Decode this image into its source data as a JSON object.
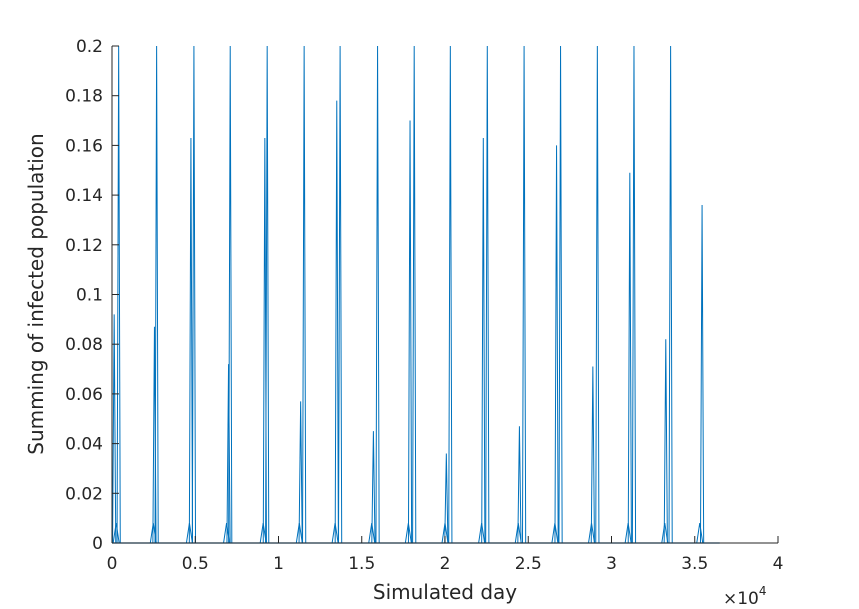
{
  "chart_data": {
    "type": "line",
    "title": "",
    "xlabel": "Simulated day",
    "ylabel": "Summing of infected population",
    "x_exponent_label": "×10",
    "x_exponent_power": "4",
    "xlim": [
      0,
      40000
    ],
    "ylim": [
      0,
      0.2
    ],
    "x_ticks": [
      0,
      5000,
      10000,
      15000,
      20000,
      25000,
      30000,
      35000,
      40000
    ],
    "x_tick_labels": [
      "0",
      "0.5",
      "1",
      "1.5",
      "2",
      "2.5",
      "3",
      "3.5",
      "4"
    ],
    "y_ticks": [
      0,
      0.02,
      0.04,
      0.06,
      0.08,
      0.1,
      0.12,
      0.14,
      0.16,
      0.18,
      0.2
    ],
    "y_tick_labels": [
      "0",
      "0.02",
      "0.04",
      "0.06",
      "0.08",
      "0.1",
      "0.12",
      "0.14",
      "0.16",
      "0.18",
      "0.2"
    ],
    "grid": false,
    "line_color": "#0072BD",
    "data_end_day": 36500,
    "series": [
      {
        "peaks": [
          {
            "day": 130,
            "value": 0.092
          },
          {
            "day": 400,
            "value": 0.2
          },
          {
            "day": 2550,
            "value": 0.087
          },
          {
            "day": 2680,
            "value": 0.2
          },
          {
            "day": 4740,
            "value": 0.163
          },
          {
            "day": 4920,
            "value": 0.2
          },
          {
            "day": 7000,
            "value": 0.072
          },
          {
            "day": 7100,
            "value": 0.2
          },
          {
            "day": 9180,
            "value": 0.163
          },
          {
            "day": 9320,
            "value": 0.2
          },
          {
            "day": 11330,
            "value": 0.057
          },
          {
            "day": 11540,
            "value": 0.2
          },
          {
            "day": 13500,
            "value": 0.178
          },
          {
            "day": 13700,
            "value": 0.2
          },
          {
            "day": 15700,
            "value": 0.045
          },
          {
            "day": 15950,
            "value": 0.2
          },
          {
            "day": 17900,
            "value": 0.17
          },
          {
            "day": 18150,
            "value": 0.2
          },
          {
            "day": 20080,
            "value": 0.036
          },
          {
            "day": 20320,
            "value": 0.2
          },
          {
            "day": 22300,
            "value": 0.163
          },
          {
            "day": 22540,
            "value": 0.2
          },
          {
            "day": 24470,
            "value": 0.047
          },
          {
            "day": 24750,
            "value": 0.2
          },
          {
            "day": 26700,
            "value": 0.16
          },
          {
            "day": 26940,
            "value": 0.2
          },
          {
            "day": 28880,
            "value": 0.071
          },
          {
            "day": 29150,
            "value": 0.2
          },
          {
            "day": 31100,
            "value": 0.149
          },
          {
            "day": 31350,
            "value": 0.2
          },
          {
            "day": 33260,
            "value": 0.082
          },
          {
            "day": 33550,
            "value": 0.2
          },
          {
            "day": 35440,
            "value": 0.136
          }
        ],
        "minor_bumps": [
          {
            "day": 250,
            "value": 0.008
          },
          {
            "day": 2480,
            "value": 0.008
          },
          {
            "day": 4650,
            "value": 0.008
          },
          {
            "day": 6880,
            "value": 0.008
          },
          {
            "day": 9080,
            "value": 0.008
          },
          {
            "day": 11250,
            "value": 0.008
          },
          {
            "day": 13400,
            "value": 0.008
          },
          {
            "day": 15600,
            "value": 0.008
          },
          {
            "day": 17800,
            "value": 0.008
          },
          {
            "day": 20000,
            "value": 0.008
          },
          {
            "day": 22200,
            "value": 0.008
          },
          {
            "day": 24400,
            "value": 0.008
          },
          {
            "day": 26600,
            "value": 0.008
          },
          {
            "day": 28800,
            "value": 0.008
          },
          {
            "day": 31000,
            "value": 0.008
          },
          {
            "day": 33200,
            "value": 0.008
          },
          {
            "day": 35300,
            "value": 0.008
          }
        ]
      }
    ]
  }
}
